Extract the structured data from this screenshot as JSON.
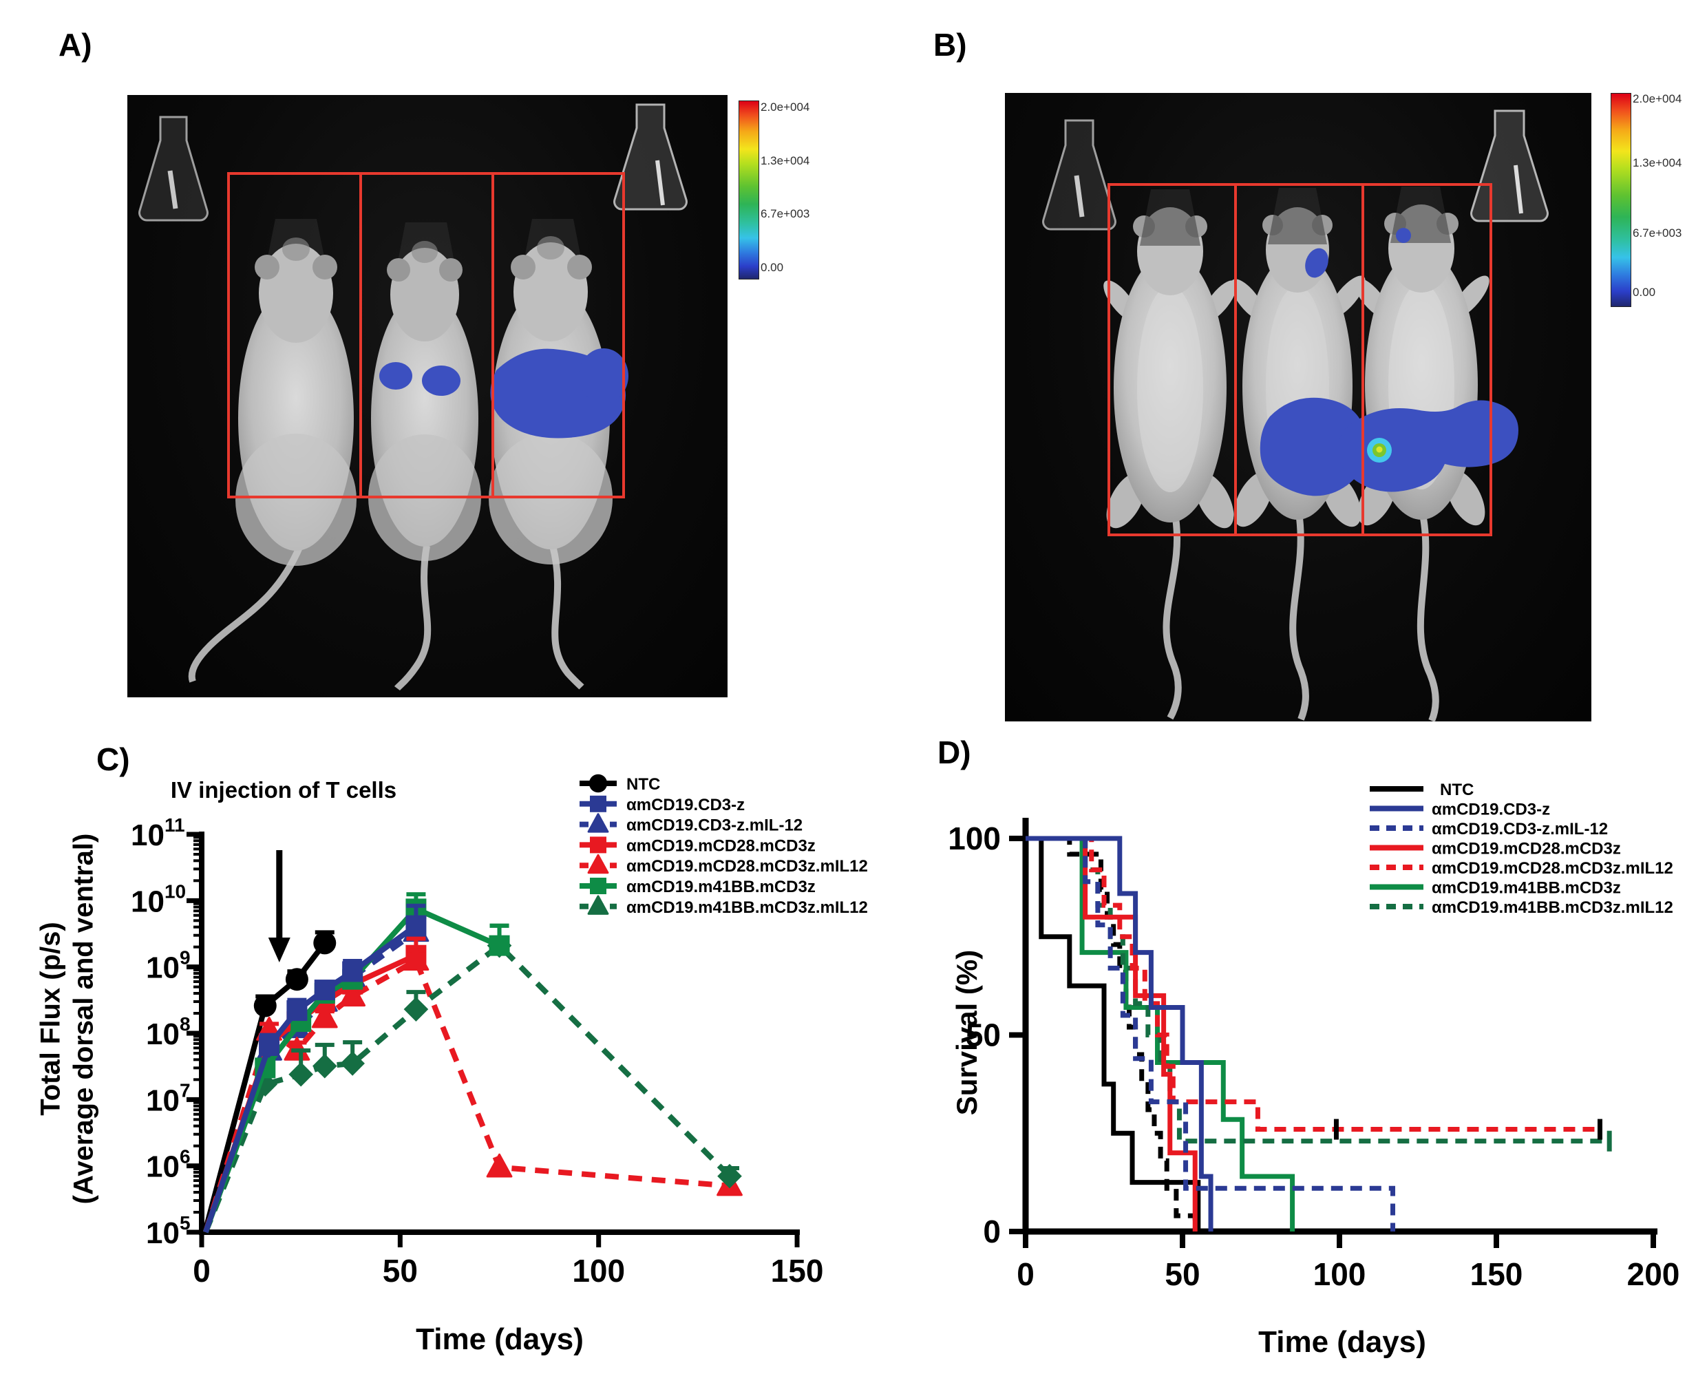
{
  "figure": {
    "panel_a_label": "A)",
    "panel_b_label": "B)",
    "panel_c_label": "C)",
    "panel_d_label": "D)"
  },
  "colorbar": {
    "ticks": [
      "2.0e+004",
      "1.3e+004",
      "6.7e+003",
      "0.00"
    ]
  },
  "chart_data": [
    {
      "id": "flux",
      "type": "line",
      "xlabel": "Time (days)",
      "ylabel_line1": "Total Flux (p/s)",
      "ylabel_line2": "(Average dorsal and ventral)",
      "annotation": "IV injection of T cells",
      "annotation_day": 18,
      "x_ticks": [
        0,
        50,
        100,
        150
      ],
      "xlim": [
        0,
        150
      ],
      "y_exponents": [
        11,
        10,
        9,
        8,
        7,
        6,
        5
      ],
      "ylog_range": [
        5,
        11
      ],
      "series": [
        {
          "name": "NTC",
          "color": "#000000",
          "dash": false,
          "marker": "circle",
          "points": [
            [
              1,
              110000
            ],
            [
              16,
              260000000.0
            ],
            [
              24,
              650000000.0
            ],
            [
              31,
              2300000000.0
            ]
          ],
          "err": [
            0,
            0.14,
            0.12,
            0.16
          ]
        },
        {
          "name": "αmCD19.CD3-z",
          "color": "#2b3a94",
          "dash": false,
          "marker": "square",
          "points": [
            [
              1,
              100000
            ],
            [
              17,
              65000000.0
            ],
            [
              24,
              220000000.0
            ],
            [
              31,
              450000000.0
            ],
            [
              38,
              850000000.0
            ],
            [
              54,
              4200000000.0
            ]
          ],
          "err": [
            0,
            0.16,
            0.16,
            0.12,
            0.16,
            0.3
          ]
        },
        {
          "name": "αmCD19.CD3-z.mIL-12",
          "color": "#2b3a94",
          "dash": true,
          "marker": "triangle",
          "points": [
            [
              1,
              100000
            ],
            [
              17,
              55000000.0
            ],
            [
              24,
              120000000.0
            ],
            [
              31,
              300000000.0
            ],
            [
              38,
              700000000.0
            ],
            [
              54,
              3400000000.0
            ]
          ],
          "err": [
            0,
            0,
            0.12,
            0.1,
            0.12,
            0.18
          ]
        },
        {
          "name": "αmCD19.mCD28.mCD3z",
          "color": "#e81921",
          "dash": false,
          "marker": "square",
          "points": [
            [
              1,
              100000
            ],
            [
              17,
              70000000.0
            ],
            [
              24,
              150000000.0
            ],
            [
              31,
              300000000.0
            ],
            [
              38,
              550000000.0
            ],
            [
              54,
              1500000000.0
            ]
          ],
          "err": [
            0,
            0.12,
            0.1,
            0.1,
            0.1,
            0.25
          ]
        },
        {
          "name": "αmCD19.mCD28.mCD3z.mIL12",
          "color": "#e81921",
          "dash": true,
          "marker": "triangle",
          "points": [
            [
              1,
              100000
            ],
            [
              17,
              110000000.0
            ],
            [
              24,
              55000000.0
            ],
            [
              31,
              170000000.0
            ],
            [
              38,
              360000000.0
            ],
            [
              54,
              1250000000.0
            ],
            [
              75,
              950000.0
            ],
            [
              133,
              500000.0
            ]
          ],
          "err": [
            0,
            0.1,
            0.12,
            0.1,
            0.12,
            0.15,
            0,
            0
          ]
        },
        {
          "name": "αmCD19.m41BB.mCD3z",
          "color": "#0e8c46",
          "dash": false,
          "marker": "square",
          "points": [
            [
              1,
              100000
            ],
            [
              16,
              30000000.0
            ],
            [
              25,
              150000000.0
            ],
            [
              31,
              400000000.0
            ],
            [
              38,
              650000000.0
            ],
            [
              54,
              7500000000.0
            ],
            [
              75,
              2100000000.0
            ]
          ],
          "err": [
            0,
            0,
            0.1,
            0.1,
            0.1,
            0.22,
            0.3
          ]
        },
        {
          "name": "αmCD19.m41BB.mCD3z.mIL12",
          "color": "#156e43",
          "dash": true,
          "marker": "diamond",
          "legend_marker": "triangle",
          "points": [
            [
              1,
              100000
            ],
            [
              16,
              17000000.0
            ],
            [
              25,
              24000000.0
            ],
            [
              31,
              32000000.0
            ],
            [
              38,
              35000000.0
            ],
            [
              54,
              230000000.0
            ],
            [
              75,
              2100000000.0
            ],
            [
              133,
              700000.0
            ]
          ],
          "err": [
            0,
            0.32,
            0.36,
            0.32,
            0.32,
            0.26,
            0.3,
            0.12
          ]
        }
      ]
    },
    {
      "id": "survival",
      "type": "line",
      "xlabel": "Time (days)",
      "ylabel": "Survival (%)",
      "x_ticks": [
        0,
        50,
        100,
        150,
        200
      ],
      "y_ticks": [
        0,
        50,
        100
      ],
      "xlim": [
        0,
        200
      ],
      "ylim": [
        0,
        100
      ],
      "series": [
        {
          "name": "NTC",
          "color": "#000000",
          "dash": false,
          "steps": [
            [
              0,
              100
            ],
            [
              5,
              75
            ],
            [
              14,
              62.5
            ],
            [
              25,
              37.5
            ],
            [
              28,
              25
            ],
            [
              34,
              12.5
            ],
            [
              55,
              0
            ]
          ]
        },
        {
          "name": "αmCD19.CD3-z",
          "color": "#2b3a94",
          "dash": false,
          "steps": [
            [
              0,
              100
            ],
            [
              30,
              86
            ],
            [
              35,
              71
            ],
            [
              40,
              57
            ],
            [
              50,
              43
            ],
            [
              56,
              14
            ],
            [
              59,
              0
            ]
          ]
        },
        {
          "name": "αmCD19.CD3-z.mIL-12",
          "color": "#2b3a94",
          "dash": true,
          "steps": [
            [
              0,
              100
            ],
            [
              19,
              89
            ],
            [
              23,
              78
            ],
            [
              27,
              67
            ],
            [
              31,
              55
            ],
            [
              35,
              44
            ],
            [
              40,
              33
            ],
            [
              51,
              11
            ],
            [
              117,
              0
            ]
          ]
        },
        {
          "name": "αmCD19.mCD28.mCD3z",
          "color": "#e81921",
          "dash": false,
          "steps": [
            [
              0,
              100
            ],
            [
              19,
              80
            ],
            [
              35,
              60
            ],
            [
              44,
              40
            ],
            [
              46,
              20
            ],
            [
              54,
              0
            ]
          ]
        },
        {
          "name": "αmCD19.mCD28.mCD3z.mIL12",
          "color": "#e81921",
          "dash": true,
          "steps": [
            [
              0,
              100
            ],
            [
              21,
              92
            ],
            [
              25,
              83
            ],
            [
              30,
              75
            ],
            [
              34,
              67
            ],
            [
              38,
              58
            ],
            [
              42,
              50
            ],
            [
              45,
              42
            ],
            [
              47,
              33
            ],
            [
              74,
              26
            ],
            [
              183,
              26
            ]
          ],
          "censor": [
            [
              99,
              26,
              "#000000"
            ],
            [
              183,
              26,
              "#000000"
            ]
          ]
        },
        {
          "name": "αmCD19.m41BB.mCD3z",
          "color": "#0e8c46",
          "dash": false,
          "steps": [
            [
              0,
              100
            ],
            [
              18,
              71
            ],
            [
              32,
              57
            ],
            [
              42,
              43
            ],
            [
              63,
              28.5
            ],
            [
              69,
              14
            ],
            [
              85,
              0
            ]
          ]
        },
        {
          "name": "αmCD19.m41BB.mCD3z.mIL12",
          "color": "#156e43",
          "dash": true,
          "steps": [
            [
              0,
              100
            ],
            [
              19,
              92
            ],
            [
              23,
              83
            ],
            [
              27,
              75
            ],
            [
              31,
              67
            ],
            [
              35,
              58
            ],
            [
              39,
              50
            ],
            [
              43,
              42
            ],
            [
              46,
              33
            ],
            [
              49,
              23
            ],
            [
              186,
              23
            ]
          ],
          "censor": [
            [
              186,
              23,
              "#156e43"
            ]
          ]
        },
        {
          "name": "unlabeled-black-dashed",
          "color": "#000000",
          "dash": true,
          "legend": false,
          "steps": [
            [
              0,
              100
            ],
            [
              14,
              96
            ],
            [
              24,
              87
            ],
            [
              26,
              80
            ],
            [
              28,
              73
            ],
            [
              30,
              66
            ],
            [
              32,
              59
            ],
            [
              33,
              52
            ],
            [
              35,
              45
            ],
            [
              37,
              38
            ],
            [
              39,
              31
            ],
            [
              41,
              25
            ],
            [
              43,
              18
            ],
            [
              45,
              11
            ],
            [
              48,
              4
            ],
            [
              54,
              0
            ]
          ]
        }
      ]
    }
  ]
}
